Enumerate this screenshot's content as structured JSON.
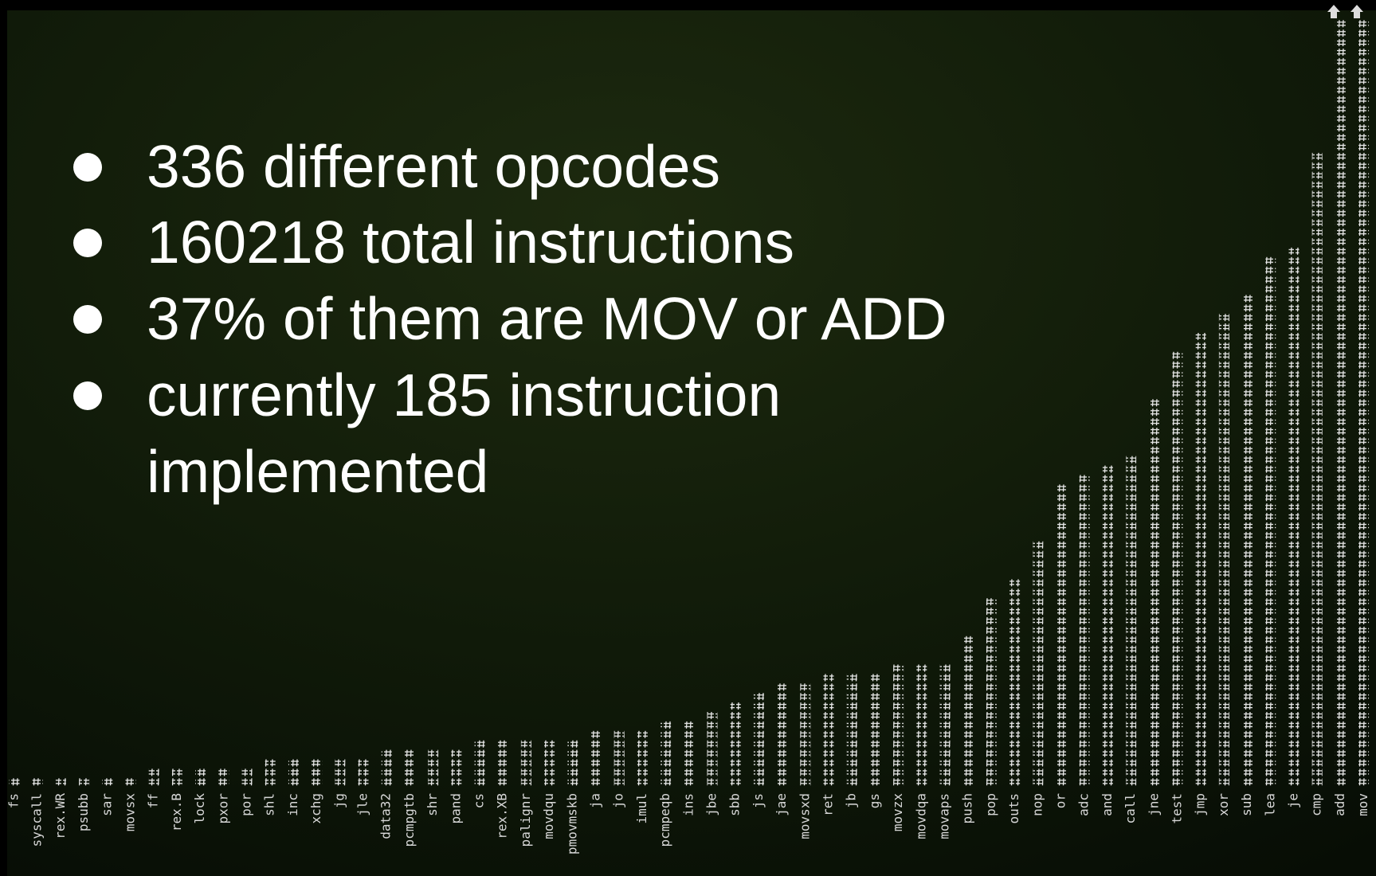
{
  "slide": {
    "bullets": [
      "336 different opcodes",
      "160218 total instructions",
      "37% of them are MOV or ADD",
      "currently 185 instruction",
      "implemented"
    ]
  },
  "chart_data": {
    "type": "bar",
    "color": "#e8e8e8",
    "categories": [
      "fs",
      "syscall",
      "rex.WR",
      "psubb",
      "sar",
      "movsx",
      "ff",
      "rex.B",
      "lock",
      "pxor",
      "por",
      "shl",
      "inc",
      "xchg",
      "jg",
      "jle",
      "data32",
      "pcmpgtb",
      "shr",
      "pand",
      "cs",
      "rex.XB",
      "palignr",
      "movdqu",
      "pmovmskb",
      "ja",
      "jo",
      "imul",
      "pcmpeqb",
      "ins",
      "jbe",
      "sbb",
      "js",
      "jae",
      "movsxd",
      "ret",
      "jb",
      "gs",
      "movzx",
      "movdqa",
      "movaps",
      "push",
      "pop",
      "outs",
      "nop",
      "or",
      "adc",
      "and",
      "call",
      "jne",
      "test",
      "jmp",
      "xor",
      "sub",
      "lea",
      "je",
      "cmp",
      "add",
      "mov"
    ],
    "values": [
      1,
      1,
      1,
      1,
      1,
      1,
      2,
      2,
      2,
      2,
      2,
      3,
      3,
      3,
      3,
      3,
      4,
      4,
      4,
      4,
      5,
      5,
      5,
      5,
      5,
      6,
      6,
      6,
      7,
      7,
      8,
      9,
      10,
      11,
      11,
      12,
      12,
      12,
      13,
      13,
      13,
      16,
      20,
      22,
      26,
      32,
      33,
      34,
      35,
      41,
      46,
      48,
      50,
      52,
      56,
      57,
      67,
      81,
      81
    ]
  }
}
